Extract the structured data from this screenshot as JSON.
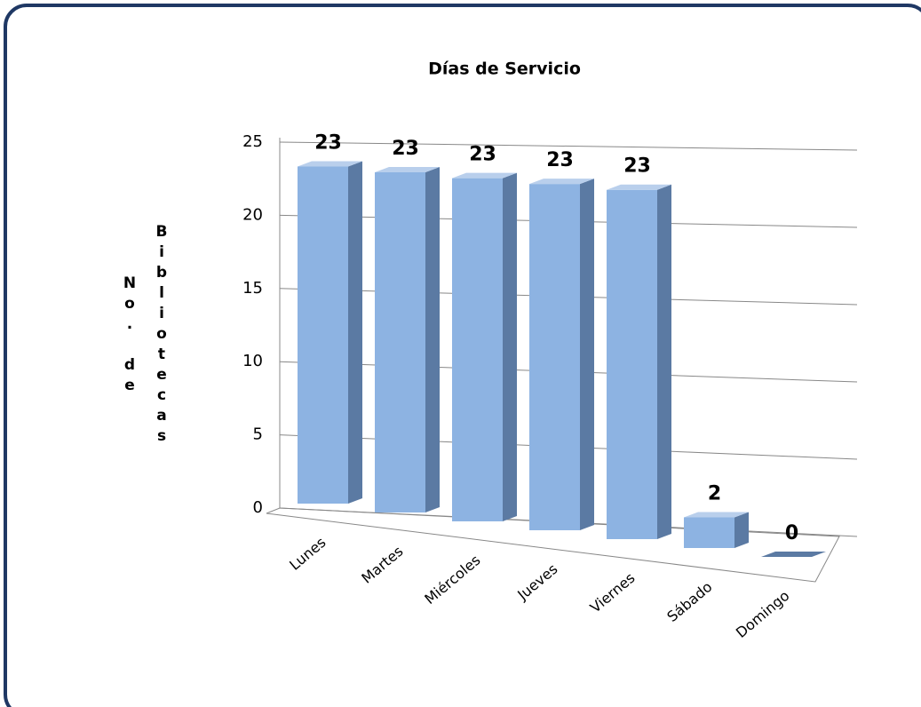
{
  "chart_data": {
    "type": "bar3d",
    "title": "Días de Servicio",
    "y_label": "No. de Bibliotecas",
    "categories": [
      "Lunes",
      "Martes",
      "Miércoles",
      "Jueves",
      "Viernes",
      "Sábado",
      "Domingo"
    ],
    "values": [
      23,
      23,
      23,
      23,
      23,
      2,
      0
    ],
    "color": "#8db3e2",
    "ylim": [
      0,
      25
    ],
    "yticks": [
      0,
      5,
      10,
      15,
      20,
      25
    ],
    "grid": true
  }
}
